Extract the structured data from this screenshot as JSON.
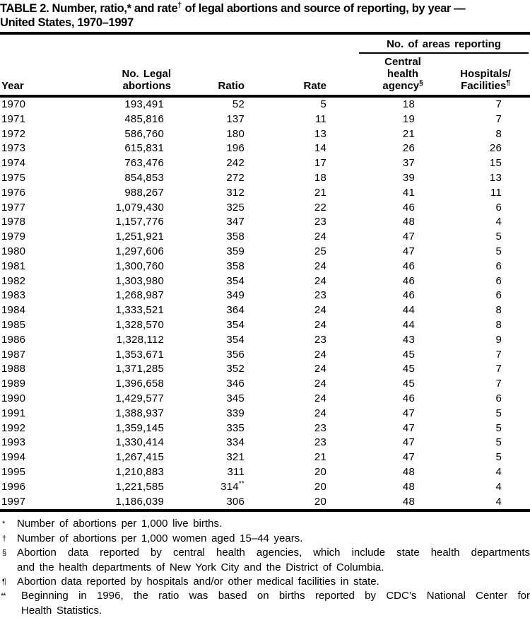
{
  "title": {
    "part1": "TABLE 2. Number, ratio,* and rate",
    "sup": "†",
    "part2": " of legal abortions and source of reporting, by year —",
    "line2": "United States, 1970–1997"
  },
  "table": {
    "spanner": "No. of areas reporting",
    "headers": {
      "year": "Year",
      "abortions_line1": "No. Legal",
      "abortions_line2": "abortions",
      "ratio": "Ratio",
      "rate": "Rate",
      "central_line1": "Central",
      "central_line2": "health agency",
      "central_sup": "§",
      "hospitals_line1": "Hospitals/",
      "hospitals_line2": "Facilities",
      "hospitals_sup": "¶"
    },
    "rows": [
      [
        "1970",
        "193,491",
        "52",
        "5",
        "18",
        "7"
      ],
      [
        "1971",
        "485,816",
        "137",
        "11",
        "19",
        "7"
      ],
      [
        "1972",
        "586,760",
        "180",
        "13",
        "21",
        "8"
      ],
      [
        "1973",
        "615,831",
        "196",
        "14",
        "26",
        "26"
      ],
      [
        "1974",
        "763,476",
        "242",
        "17",
        "37",
        "15"
      ],
      [
        "1975",
        "854,853",
        "272",
        "18",
        "39",
        "13"
      ],
      [
        "1976",
        "988,267",
        "312",
        "21",
        "41",
        "11"
      ],
      [
        "1977",
        "1,079,430",
        "325",
        "22",
        "46",
        "6"
      ],
      [
        "1978",
        "1,157,776",
        "347",
        "23",
        "48",
        "4"
      ],
      [
        "1979",
        "1,251,921",
        "358",
        "24",
        "47",
        "5"
      ],
      [
        "1980",
        "1,297,606",
        "359",
        "25",
        "47",
        "5"
      ],
      [
        "1981",
        "1,300,760",
        "358",
        "24",
        "46",
        "6"
      ],
      [
        "1982",
        "1,303,980",
        "354",
        "24",
        "46",
        "6"
      ],
      [
        "1983",
        "1,268,987",
        "349",
        "23",
        "46",
        "6"
      ],
      [
        "1984",
        "1,333,521",
        "364",
        "24",
        "44",
        "8"
      ],
      [
        "1985",
        "1,328,570",
        "354",
        "24",
        "44",
        "8"
      ],
      [
        "1986",
        "1,328,112",
        "354",
        "23",
        "43",
        "9"
      ],
      [
        "1987",
        "1,353,671",
        "356",
        "24",
        "45",
        "7"
      ],
      [
        "1988",
        "1,371,285",
        "352",
        "24",
        "45",
        "7"
      ],
      [
        "1989",
        "1,396,658",
        "346",
        "24",
        "45",
        "7"
      ],
      [
        "1990",
        "1,429,577",
        "345",
        "24",
        "46",
        "6"
      ],
      [
        "1991",
        "1,388,937",
        "339",
        "24",
        "47",
        "5"
      ],
      [
        "1992",
        "1,359,145",
        "335",
        "23",
        "47",
        "5"
      ],
      [
        "1993",
        "1,330,414",
        "334",
        "23",
        "47",
        "5"
      ],
      [
        "1994",
        "1,267,415",
        "321",
        "21",
        "47",
        "5"
      ],
      [
        "1995",
        "1,210,883",
        "311",
        "20",
        "48",
        "4"
      ],
      [
        "1996",
        "1,221,585",
        "314**",
        "20",
        "48",
        "4"
      ],
      [
        "1997",
        "1,186,039",
        "306",
        "20",
        "48",
        "4"
      ]
    ]
  },
  "footnotes": [
    {
      "marker": "*",
      "lines": [
        "Number of abortions per 1,000 live births."
      ]
    },
    {
      "marker": "†",
      "lines": [
        "Number of abortions per 1,000 women aged 15–44 years."
      ]
    },
    {
      "marker": "§",
      "lines": [
        "Abortion data reported by central health agencies, which include state health departments",
        "and the health departments of New York City and the District of Columbia."
      ]
    },
    {
      "marker": "¶",
      "lines": [
        "Abortion data reported by hospitals and/or other medical facilities in state."
      ]
    },
    {
      "marker": "**",
      "lines": [
        "Beginning in 1996, the ratio was based on births reported by CDC’s National Center for",
        "Health Statistics."
      ]
    }
  ],
  "colors": {
    "text": "#000000",
    "background": "#ffffff"
  }
}
